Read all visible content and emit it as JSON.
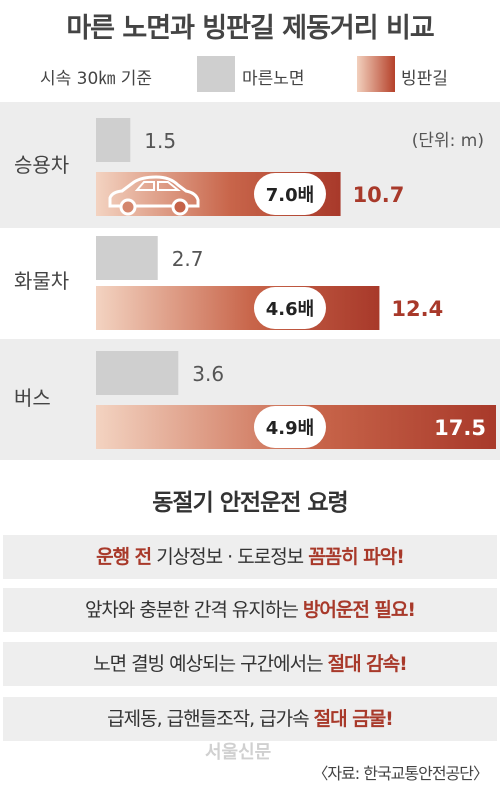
{
  "title": "마른 노면과 빙판길 제동거리 비교",
  "legend": {
    "condition": "시속 30㎞ 기준",
    "dry": "마른노면",
    "ice": "빙판길",
    "colors": {
      "dry": "#cfcfcf",
      "ice_light": "#f2d0bd",
      "ice_dark": "#b5412a",
      "ice_value": "#a8392a"
    }
  },
  "chart_data": {
    "type": "bar",
    "orientation": "horizontal",
    "unit": "(단위: m)",
    "categories": [
      "승용차",
      "화물차",
      "버스"
    ],
    "series": [
      {
        "name": "마른노면",
        "values": [
          1.5,
          2.7,
          3.6
        ]
      },
      {
        "name": "빙판길",
        "values": [
          10.7,
          12.4,
          17.5
        ]
      }
    ],
    "ratio_labels": [
      "7.0배",
      "4.6배",
      "4.9배"
    ],
    "xlim": [
      0,
      17.5
    ]
  },
  "car_icon": "car-icon",
  "tips": {
    "title": "동절기 안전운전 요령",
    "items": [
      {
        "pre": "",
        "em1": "운행 전",
        "mid": " 기상정보 · 도로정보 ",
        "em2": "꼼꼼히 파악!"
      },
      {
        "pre": "앞차와 충분한 간격 유지하는 ",
        "em1": "방어운전 필요!",
        "mid": "",
        "em2": ""
      },
      {
        "pre": "노면 결빙 예상되는 구간에서는 ",
        "em1": "절대 감속!",
        "mid": "",
        "em2": ""
      },
      {
        "pre": "급제동, 급핸들조작, 급가속 ",
        "em1": "절대 금물!",
        "mid": "",
        "em2": ""
      }
    ]
  },
  "watermark": "서울신문",
  "source": "〈자료: 한국교통안전공단〉"
}
